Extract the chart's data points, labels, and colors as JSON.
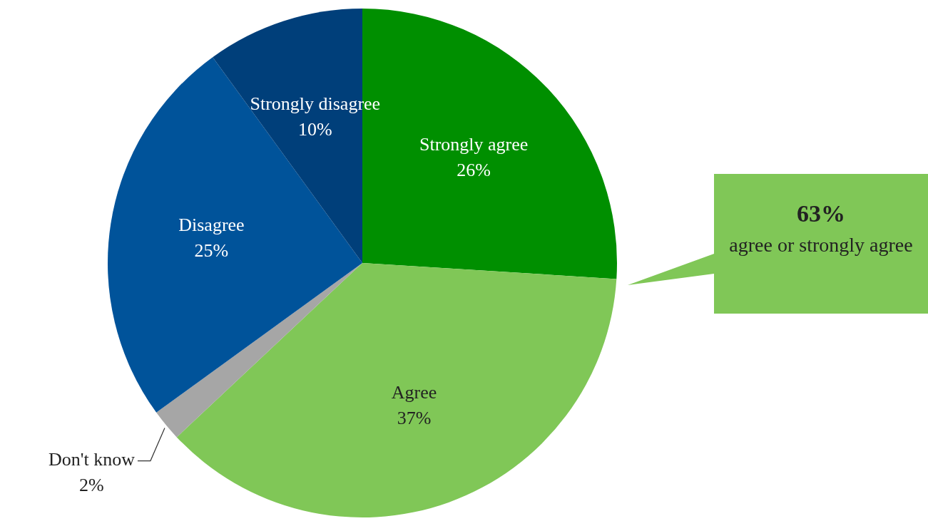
{
  "chart_data": {
    "type": "pie",
    "categories": [
      "Strongly agree",
      "Agree",
      "Don't know",
      "Disagree",
      "Strongly disagree"
    ],
    "values": [
      26,
      37,
      2,
      25,
      10
    ],
    "value_labels": [
      "26%",
      "37%",
      "2%",
      "25%",
      "10%"
    ],
    "colors": [
      "#008f00",
      "#80c757",
      "#a6a6a6",
      "#00539a",
      "#003f7a"
    ],
    "legend": false,
    "annotations": [
      "63%",
      "agree or strongly agree"
    ]
  }
}
